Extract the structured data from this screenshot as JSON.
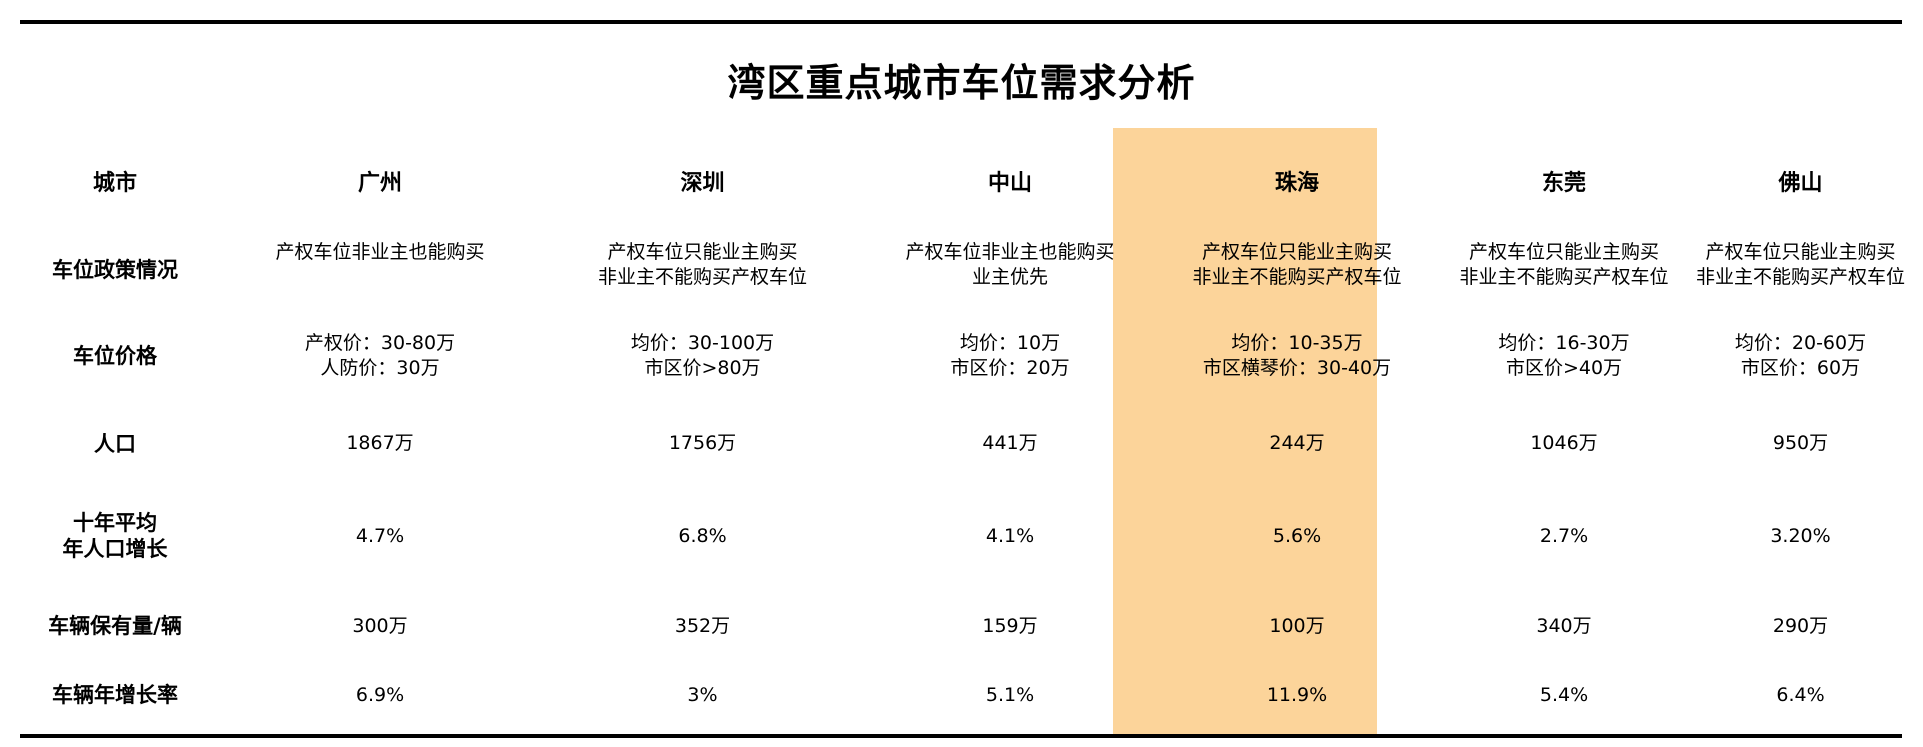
{
  "title": "湾区重点城市车位需求分析",
  "table": {
    "header_label": "城市",
    "cities": [
      "广州",
      "深圳",
      "中山",
      "珠海",
      "东莞",
      "佛山"
    ],
    "highlight_city": "珠海",
    "highlight_color": "#fcd49a",
    "rows": [
      {
        "label": [
          "车位政策情况"
        ],
        "cells": [
          [
            "产权车位非业主也能购买"
          ],
          [
            "产权车位只能业主购买",
            "非业主不能购买产权车位"
          ],
          [
            "产权车位非业主也能购买",
            "业主优先"
          ],
          [
            "产权车位只能业主购买",
            "非业主不能购买产权车位"
          ],
          [
            "产权车位只能业主购买",
            "非业主不能购买产权车位"
          ],
          [
            "产权车位只能业主购买",
            "非业主不能购买产权车位"
          ]
        ]
      },
      {
        "label": [
          "车位价格"
        ],
        "cells": [
          [
            "产权价：30-80万",
            "人防价：30万"
          ],
          [
            "均价：30-100万",
            "市区价>80万"
          ],
          [
            "均价：10万",
            "市区价：20万"
          ],
          [
            "均价：10-35万",
            "市区横琴价：30-40万"
          ],
          [
            "均价：16-30万",
            "市区价>40万"
          ],
          [
            "均价：20-60万",
            "市区价：60万"
          ]
        ]
      },
      {
        "label": [
          "人口"
        ],
        "cells": [
          [
            "1867万"
          ],
          [
            "1756万"
          ],
          [
            "441万"
          ],
          [
            "244万"
          ],
          [
            "1046万"
          ],
          [
            "950万"
          ]
        ]
      },
      {
        "label": [
          "十年平均",
          "年人口增长"
        ],
        "cells": [
          [
            "4.7%"
          ],
          [
            "6.8%"
          ],
          [
            "4.1%"
          ],
          [
            "5.6%"
          ],
          [
            "2.7%"
          ],
          [
            "3.20%"
          ]
        ]
      },
      {
        "label": [
          "车辆保有量/辆"
        ],
        "cells": [
          [
            "300万"
          ],
          [
            "352万"
          ],
          [
            "159万"
          ],
          [
            "100万"
          ],
          [
            "340万"
          ],
          [
            "290万"
          ]
        ]
      },
      {
        "label": [
          "车辆年增长率"
        ],
        "cells": [
          [
            "6.9%"
          ],
          [
            "3%"
          ],
          [
            "5.1%"
          ],
          [
            "11.9%"
          ],
          [
            "5.4%"
          ],
          [
            "6.4%"
          ]
        ]
      }
    ]
  }
}
